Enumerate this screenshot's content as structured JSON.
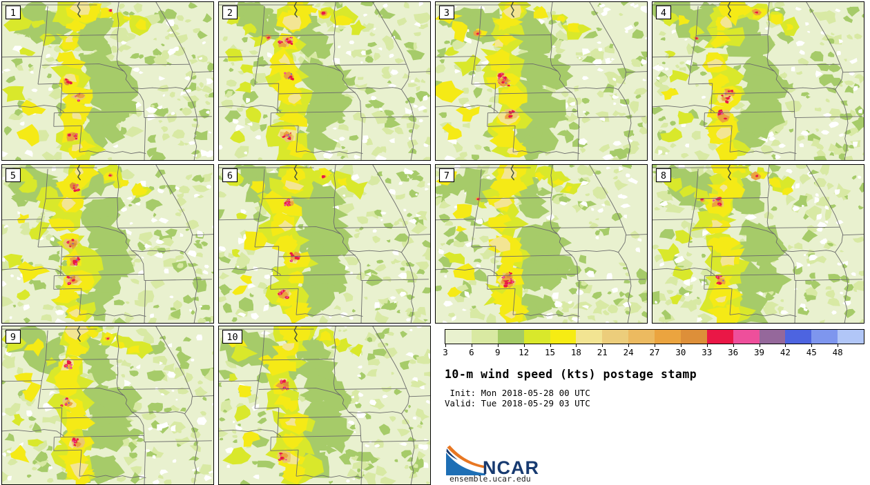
{
  "figure": {
    "title": "10-m wind speed (kts) postage stamp",
    "init_label": " Init: Mon 2018-05-28 00 UTC",
    "valid_label": "Valid: Tue 2018-05-29 03 UTC",
    "panels": [
      {
        "label": "1"
      },
      {
        "label": "2"
      },
      {
        "label": "3"
      },
      {
        "label": "4"
      },
      {
        "label": "5"
      },
      {
        "label": "6"
      },
      {
        "label": "7"
      },
      {
        "label": "8"
      },
      {
        "label": "9"
      },
      {
        "label": "10"
      }
    ],
    "colorbar": {
      "tick_labels": [
        "3",
        "6",
        "9",
        "12",
        "15",
        "18",
        "21",
        "24",
        "27",
        "30",
        "33",
        "36",
        "39",
        "42",
        "45",
        "48"
      ],
      "colors": [
        "#e9f1cf",
        "#d9e9a2",
        "#a4cb66",
        "#d9e82b",
        "#f6ec13",
        "#f2e492",
        "#eccd7b",
        "#ecba60",
        "#eba43f",
        "#dd8f39",
        "#ea1746",
        "#ee4f9b",
        "#95689b",
        "#4d64e0",
        "#7e96ee",
        "#b1c6f7"
      ]
    },
    "branding": {
      "logo_text": "NCAR",
      "site": "ensemble.ucar.edu",
      "logo_blue": "#1e6fb5",
      "logo_orange": "#e87722",
      "logo_navy": "#173a70"
    },
    "map_palette": {
      "background": "#e9f1cf",
      "speckle": "#d8e9a4",
      "green": "#a6cb69",
      "yellow_green": "#d9e82b",
      "yellow": "#f5ea16",
      "cream": "#f3e593",
      "tan": "#eac96e",
      "orange": "#eaa33f",
      "dark_orange": "#dc8e38",
      "red": "#e91843",
      "pink": "#ee4f9b",
      "purple": "#91689b",
      "blue": "#4d64e0",
      "white_patch": "#ffffff",
      "border_line": "#6b6b6b",
      "river_dark": "#41503c"
    }
  }
}
